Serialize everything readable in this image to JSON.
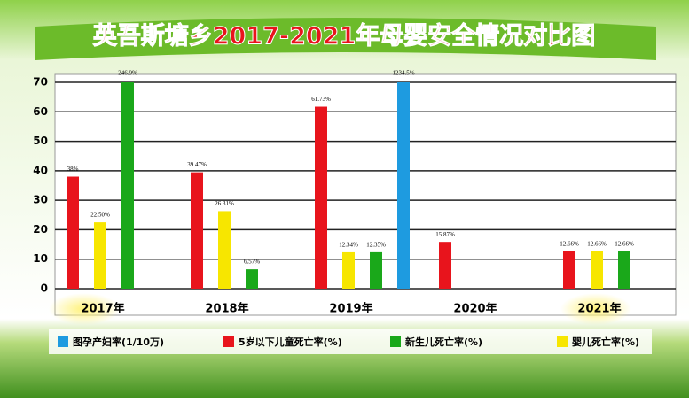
{
  "chart_data": {
    "type": "bar",
    "title": "英吾斯塘乡2017-2021年母婴安全情况对比图",
    "categories": [
      "2017年",
      "2018年",
      "2019年",
      "2020年",
      "2021年"
    ],
    "series": [
      {
        "name": "图孕产妇率(1/10万)",
        "color": "#1e9be0",
        "values": [
          null,
          null,
          1234.5,
          null,
          null
        ],
        "value_labels": [
          null,
          null,
          "1234.5%",
          null,
          null
        ]
      },
      {
        "name": "5岁以下儿童死亡率(%)",
        "color": "#e8141c",
        "values": [
          38,
          39.47,
          61.73,
          15.87,
          12.66
        ],
        "value_labels": [
          "38%",
          "39.47%",
          "61.73%",
          "15.87%",
          "12.66%"
        ]
      },
      {
        "name": "新生儿死亡率(%)",
        "color": "#1aa81a",
        "values": [
          246.9,
          6.57,
          12.35,
          null,
          12.66
        ],
        "value_labels": [
          "246.9%",
          "6.57%",
          "12.35%",
          null,
          "12.66%"
        ]
      },
      {
        "name": "婴儿死亡率(%)",
        "color": "#f7e600",
        "values": [
          22.5,
          26.31,
          12.34,
          null,
          12.66
        ],
        "value_labels": [
          "22.50%",
          "26.31%",
          "12.34%",
          null,
          "12.66%"
        ]
      }
    ],
    "ylim": [
      0,
      70
    ],
    "yticks": [
      0,
      10,
      20,
      30,
      40,
      50,
      60,
      70
    ],
    "grid": true
  }
}
